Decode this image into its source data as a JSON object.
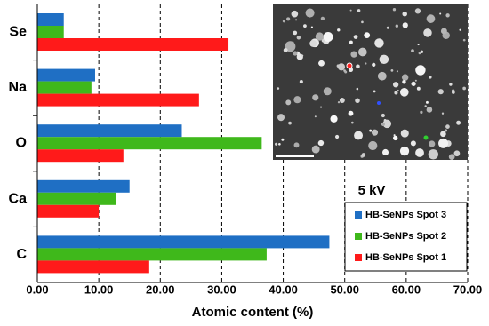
{
  "chart_data": {
    "type": "hbar",
    "categories": [
      "Se",
      "Na",
      "O",
      "Ca",
      "C"
    ],
    "series": [
      {
        "name": "HB-SeNPs Spot 3",
        "color": "#1f6fc4",
        "values": [
          4.3,
          9.4,
          23.5,
          15.0,
          47.5
        ]
      },
      {
        "name": "HB-SeNPs Spot 2",
        "color": "#3fb81b",
        "values": [
          4.3,
          8.8,
          36.5,
          12.8,
          37.3
        ]
      },
      {
        "name": "HB-SeNPs Spot 1",
        "color": "#ff1a1a",
        "values": [
          31.1,
          26.3,
          14.0,
          10.0,
          18.2
        ]
      }
    ],
    "xlabel": "Atomic content (%)",
    "annotation": "5 kV",
    "xlim": [
      0,
      70
    ],
    "xticks": [
      {
        "value": 0,
        "label": "0.00"
      },
      {
        "value": 10,
        "label": "10.00"
      },
      {
        "value": 20,
        "label": "20.00"
      },
      {
        "value": 30,
        "label": "30.00"
      },
      {
        "value": 40,
        "label": "40.00"
      },
      {
        "value": 50,
        "label": "50.00"
      },
      {
        "value": 60,
        "label": "60.00"
      },
      {
        "value": 70,
        "label": "70.00"
      }
    ],
    "grid": true
  }
}
